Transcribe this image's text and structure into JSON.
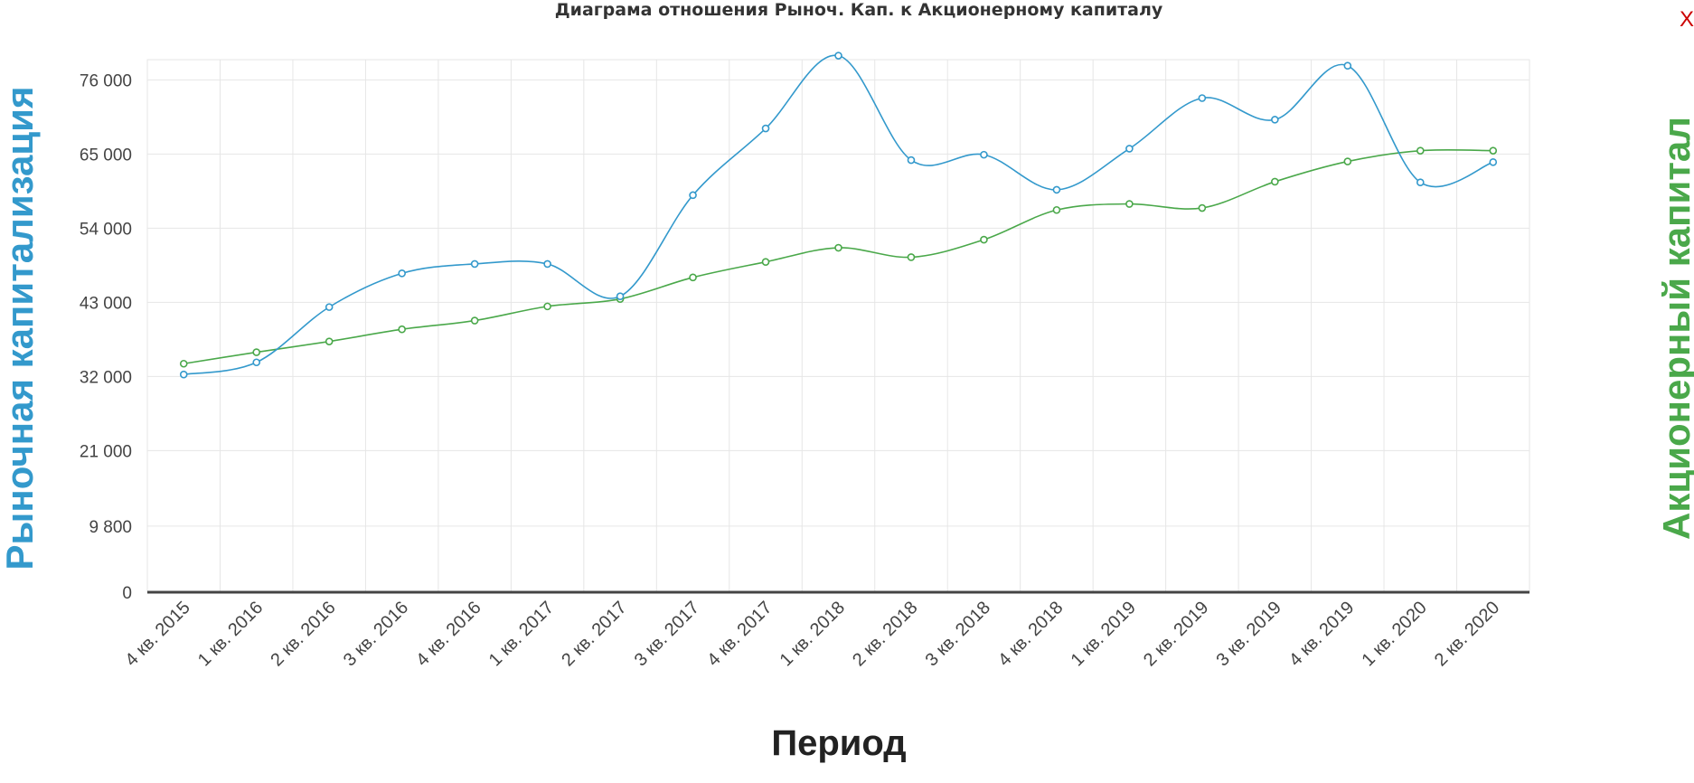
{
  "chart_data": {
    "type": "line",
    "title": "Диаграма отношения Рыноч. Кап. к Акционерному капиталу",
    "xlabel": "Период",
    "ylabel_left": "Рыночная капитализация",
    "ylabel_right": "Акционерный капитал",
    "yticks": [
      "0",
      "9 800",
      "21 000",
      "32 000",
      "43 000",
      "54 000",
      "65 000",
      "76 000"
    ],
    "ylim": [
      0,
      79000
    ],
    "grid": true,
    "categories": [
      "4 кв. 2015",
      "1 кв. 2016",
      "2 кв. 2016",
      "3 кв. 2016",
      "4 кв. 2016",
      "1 кв. 2017",
      "2 кв. 2017",
      "3 кв. 2017",
      "4 кв. 2017",
      "1 кв. 2018",
      "2 кв. 2018",
      "3 кв. 2018",
      "4 кв. 2018",
      "1 кв. 2019",
      "2 кв. 2019",
      "3 кв. 2019",
      "4 кв. 2019",
      "1 кв. 2020",
      "2 кв. 2020"
    ],
    "series": [
      {
        "name": "Рыночная капитализация",
        "color": "#3399cc",
        "values": [
          32300,
          34100,
          42300,
          47300,
          48700,
          48700,
          43900,
          58900,
          68800,
          79600,
          64100,
          64900,
          59700,
          65800,
          73300,
          70100,
          78100,
          60800,
          63800
        ]
      },
      {
        "name": "Акционерный капитал",
        "color": "#4aa84a",
        "values": [
          33900,
          35600,
          37200,
          39000,
          40300,
          42400,
          43500,
          46700,
          49000,
          51100,
          49700,
          52300,
          56700,
          57600,
          57000,
          60900,
          63900,
          65500,
          65500
        ]
      }
    ]
  },
  "ui": {
    "close_label": "X",
    "close_color": "#cc0000",
    "left_label_color": "#3399cc",
    "right_label_color": "#4aa84a"
  }
}
